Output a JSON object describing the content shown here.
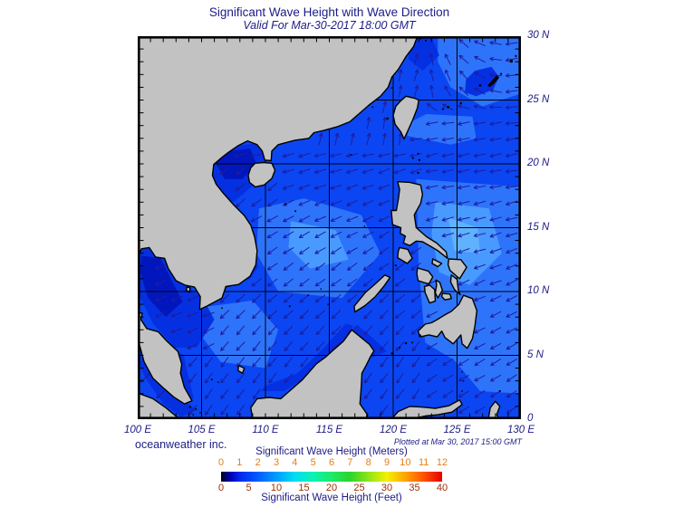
{
  "header": {
    "title": "Significant Wave Height with Wave Direction",
    "subtitle": "Valid For Mar-30-2017 18:00 GMT"
  },
  "footer": {
    "credit": "oceanweather inc.",
    "plotted": "Plotted at Mar 30, 2017 15:00 GMT"
  },
  "map": {
    "extent": {
      "lon_min": 100,
      "lon_max": 130,
      "lat_min": 0,
      "lat_max": 30
    },
    "grid_interval_deg": 5,
    "tick_interval_deg": 1,
    "lat_labels": [
      "30 N",
      "25 N",
      "20 N",
      "15 N",
      "10 N",
      "5 N",
      "0"
    ],
    "lon_labels": [
      "100 E",
      "105 E",
      "110 E",
      "115 E",
      "120 E",
      "125 E",
      "130 E"
    ]
  },
  "colorbar": {
    "title_top": "Significant Wave Height (Meters)",
    "title_bottom": "Significant Wave Height (Feet)",
    "meters_ticks": [
      "0",
      "1",
      "2",
      "3",
      "4",
      "5",
      "6",
      "7",
      "8",
      "9",
      "10",
      "11",
      "12"
    ],
    "feet_ticks": [
      "0",
      "5",
      "10",
      "15",
      "20",
      "25",
      "30",
      "35",
      "40"
    ],
    "gradient": [
      {
        "p": 0.0,
        "c": "#00001a"
      },
      {
        "p": 0.042,
        "c": "#0000b4"
      },
      {
        "p": 0.083,
        "c": "#0026ee"
      },
      {
        "p": 0.167,
        "c": "#005cff"
      },
      {
        "p": 0.25,
        "c": "#009cff"
      },
      {
        "p": 0.333,
        "c": "#00ddf2"
      },
      {
        "p": 0.417,
        "c": "#0cf2b4"
      },
      {
        "p": 0.5,
        "c": "#1ee96a"
      },
      {
        "p": 0.583,
        "c": "#2bd42b"
      },
      {
        "p": 0.667,
        "c": "#8ee418"
      },
      {
        "p": 0.75,
        "c": "#f2f200"
      },
      {
        "p": 0.833,
        "c": "#ffa400"
      },
      {
        "p": 0.917,
        "c": "#ff5200"
      },
      {
        "p": 1.0,
        "c": "#e60000"
      }
    ]
  },
  "colors": {
    "text_navy": "#1c1c87",
    "tick_meters": "#e87d15",
    "tick_feet": "#9c2e00",
    "land": "#c2c2c2",
    "coastline": "#000000",
    "gridline": "#000000",
    "arrow": "#1d1d9e",
    "sea": {
      "b0": "#0117bd",
      "b1": "#0530e2",
      "b2": "#0b46f2",
      "b3": "#2e74fb",
      "b4": "#499aff",
      "b5": "#60b2ff"
    }
  }
}
